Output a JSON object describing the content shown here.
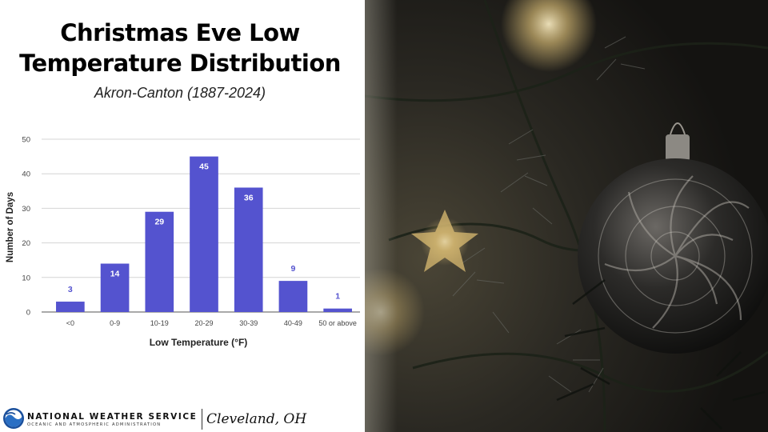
{
  "title_line1": "Christmas Eve Low",
  "title_line2": "Temperature Distribution",
  "subtitle": "Akron-Canton (1887-2024)",
  "chart_data": {
    "type": "bar",
    "categories": [
      "<0",
      "0-9",
      "10-19",
      "20-29",
      "30-39",
      "40-49",
      "50 or above"
    ],
    "values": [
      3,
      14,
      29,
      45,
      36,
      9,
      1
    ],
    "xlabel": "Low Temperature (°F)",
    "ylabel": "Number of Days",
    "ylim": [
      0,
      50
    ],
    "yticks": [
      0,
      10,
      20,
      30,
      40,
      50
    ],
    "grid": true,
    "bar_color": "#5453cf",
    "label_color_inside": "#ffffff",
    "label_color_outside": "#5453cf"
  },
  "footer": {
    "agency": "NATIONAL WEATHER SERVICE",
    "agency_sub": "OCEANIC AND ATMOSPHERIC ADMINISTRATION",
    "office": "Cleveland, OH"
  }
}
